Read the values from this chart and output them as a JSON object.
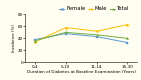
{
  "x_labels": [
    "0-4",
    "5-10",
    "11-14",
    "15-30"
  ],
  "x_values": [
    0,
    1,
    2,
    3
  ],
  "series": [
    {
      "name": "Female",
      "values": [
        38,
        48,
        43,
        33
      ],
      "color": "#5b9bd5",
      "marker": "s",
      "linestyle": "-"
    },
    {
      "name": "Male",
      "values": [
        34,
        58,
        52,
        63
      ],
      "color": "#ffc000",
      "marker": "o",
      "linestyle": "-"
    },
    {
      "name": "Total",
      "values": [
        36,
        50,
        46,
        40
      ],
      "color": "#70ad47",
      "marker": "^",
      "linestyle": "-"
    }
  ],
  "ylabel": "Incidence (%)",
  "xlabel": "Duration of Diabetes at Baseline Examination (Years)",
  "ylim": [
    0,
    80
  ],
  "yticks": [
    0,
    20,
    40,
    60,
    80
  ],
  "background_color": "#fffef0",
  "legend_fontsize": 3.8,
  "axis_fontsize": 3.0,
  "tick_fontsize": 3.0,
  "linewidth": 0.7,
  "markersize": 1.6
}
